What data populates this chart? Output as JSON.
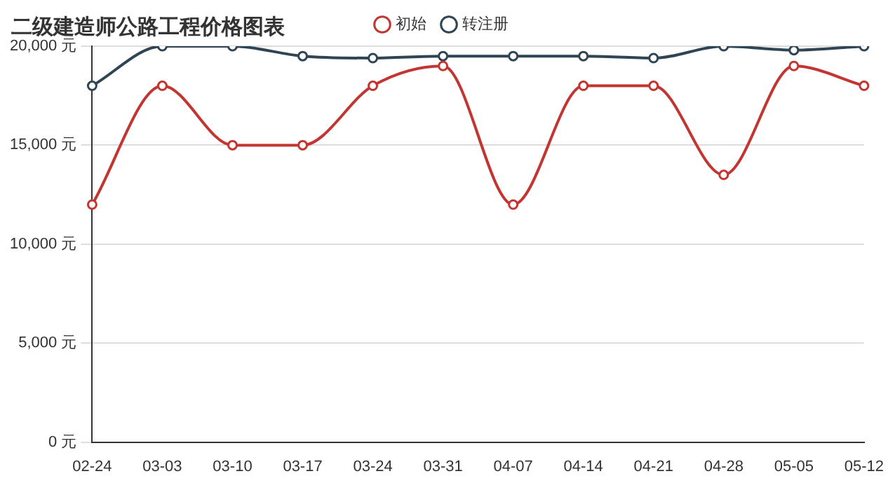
{
  "chart_data": {
    "type": "line",
    "title": "二级建造师公路工程价格图表",
    "categories": [
      "02-24",
      "03-03",
      "03-10",
      "03-17",
      "03-24",
      "03-31",
      "04-07",
      "04-14",
      "04-21",
      "04-28",
      "05-05",
      "05-12"
    ],
    "series": [
      {
        "name": "初始",
        "color": "#c23531",
        "values": [
          12000,
          18000,
          15000,
          15000,
          18000,
          19000,
          12000,
          18000,
          18000,
          13500,
          19000,
          18000
        ]
      },
      {
        "name": "转注册",
        "color": "#2f4554",
        "values": [
          18000,
          20000,
          20000,
          19500,
          19400,
          19500,
          19500,
          19500,
          19400,
          20000,
          19800,
          20000
        ]
      }
    ],
    "ylim": [
      0,
      20000
    ],
    "yticks": [
      {
        "value": 0,
        "label": "0 元"
      },
      {
        "value": 5000,
        "label": "5,000 元"
      },
      {
        "value": 10000,
        "label": "10,000 元"
      },
      {
        "value": 15000,
        "label": "15,000 元"
      },
      {
        "value": 20000,
        "label": "20,000 元"
      }
    ],
    "grid": "y",
    "legend": "top",
    "marker": "circle",
    "line_style": "solid"
  }
}
